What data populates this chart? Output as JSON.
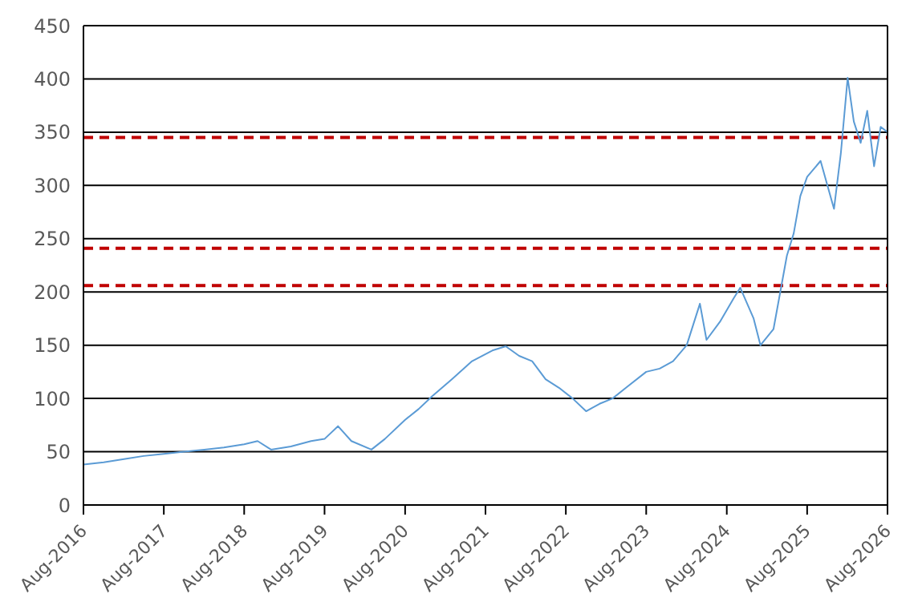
{
  "chart_data": {
    "type": "line",
    "x": [
      "2016-08",
      "2016-11",
      "2017-02",
      "2017-05",
      "2017-08",
      "2017-11",
      "2018-02",
      "2018-05",
      "2018-08",
      "2018-10",
      "2018-12",
      "2019-03",
      "2019-06",
      "2019-08",
      "2019-10",
      "2019-12",
      "2020-03",
      "2020-05",
      "2020-08",
      "2020-10",
      "2020-12",
      "2021-03",
      "2021-06",
      "2021-09",
      "2021-11",
      "2022-01",
      "2022-03",
      "2022-05",
      "2022-07",
      "2022-09",
      "2022-11",
      "2023-01",
      "2023-03",
      "2023-05",
      "2023-08",
      "2023-10",
      "2023-12",
      "2024-02",
      "2024-04",
      "2024-05",
      "2024-07",
      "2024-09",
      "2024-10",
      "2024-12",
      "2025-01",
      "2025-03",
      "2025-05",
      "2025-06",
      "2025-07",
      "2025-08",
      "2025-10",
      "2025-11",
      "2025-12",
      "2026-01",
      "2026-02",
      "2026-03",
      "2026-04",
      "2026-05",
      "2026-06",
      "2026-07",
      "2026-08"
    ],
    "series": [
      {
        "color": "#5b9bd5",
        "values": [
          38,
          40,
          43,
          46,
          48,
          50,
          52,
          54,
          57,
          60,
          52,
          55,
          60,
          62,
          74,
          60,
          52,
          62,
          80,
          90,
          102,
          118,
          135,
          145,
          149,
          140,
          135,
          118,
          110,
          100,
          88,
          95,
          100,
          110,
          125,
          128,
          135,
          150,
          189,
          155,
          172,
          194,
          204,
          175,
          150,
          165,
          234,
          255,
          290,
          308,
          323,
          300,
          278,
          330,
          401,
          360,
          340,
          370,
          318,
          355,
          350
        ]
      }
    ],
    "xlim": [
      "2016-08",
      "2026-08"
    ],
    "xticks": [
      {
        "value": "2016-08",
        "label": "Aug-2016"
      },
      {
        "value": "2017-08",
        "label": "Aug-2017"
      },
      {
        "value": "2018-08",
        "label": "Aug-2018"
      },
      {
        "value": "2019-08",
        "label": "Aug-2019"
      },
      {
        "value": "2020-08",
        "label": "Aug-2020"
      },
      {
        "value": "2021-08",
        "label": "Aug-2021"
      },
      {
        "value": "2022-08",
        "label": "Aug-2022"
      },
      {
        "value": "2023-08",
        "label": "Aug-2023"
      },
      {
        "value": "2024-08",
        "label": "Aug-2024"
      },
      {
        "value": "2025-08",
        "label": "Aug-2025"
      },
      {
        "value": "2026-08",
        "label": "Aug-2026"
      }
    ],
    "ylim": [
      0,
      450
    ],
    "yticks": [
      0,
      50,
      100,
      150,
      200,
      250,
      300,
      350,
      400,
      450
    ],
    "grid": "y",
    "legend": false,
    "marker": "none",
    "line_style": "solid",
    "ref_lines": [
      {
        "axis": "y",
        "value": 345,
        "color": "#c00000",
        "line_style": "dashed"
      },
      {
        "axis": "y",
        "value": 241,
        "color": "#c00000",
        "line_style": "dashed"
      },
      {
        "axis": "y",
        "value": 206,
        "color": "#c00000",
        "line_style": "dashed"
      }
    ]
  }
}
